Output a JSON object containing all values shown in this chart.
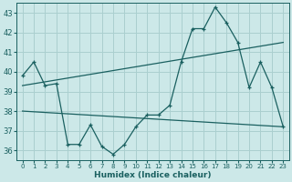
{
  "xlabel": "Humidex (Indice chaleur)",
  "bg_color": "#cce8e8",
  "grid_color": "#aacfcf",
  "line_color": "#1a6060",
  "xlim": [
    -0.5,
    23.5
  ],
  "ylim": [
    35.5,
    43.5
  ],
  "yticks": [
    36,
    37,
    38,
    39,
    40,
    41,
    42,
    43
  ],
  "xticks": [
    0,
    1,
    2,
    3,
    4,
    5,
    6,
    7,
    8,
    9,
    10,
    11,
    12,
    13,
    14,
    15,
    16,
    17,
    18,
    19,
    20,
    21,
    22,
    23
  ],
  "series1_x": [
    0,
    1,
    2,
    3,
    4,
    5,
    6,
    7,
    8,
    9,
    10,
    11,
    12,
    13,
    14,
    15,
    16,
    17,
    18,
    19,
    20,
    21,
    22,
    23
  ],
  "series1_y": [
    39.8,
    40.5,
    39.3,
    39.4,
    36.3,
    36.3,
    37.3,
    36.2,
    35.8,
    36.3,
    37.2,
    37.8,
    37.8,
    38.3,
    40.5,
    42.2,
    42.2,
    43.3,
    42.5,
    41.5,
    39.2,
    40.5,
    39.2,
    37.2
  ],
  "series2_x": [
    0,
    23
  ],
  "series2_y": [
    39.3,
    41.5
  ],
  "series3_x": [
    0,
    23
  ],
  "series3_y": [
    38.0,
    37.2
  ],
  "xtick_fontsize": 5.0,
  "ytick_fontsize": 6.0,
  "xlabel_fontsize": 6.5
}
